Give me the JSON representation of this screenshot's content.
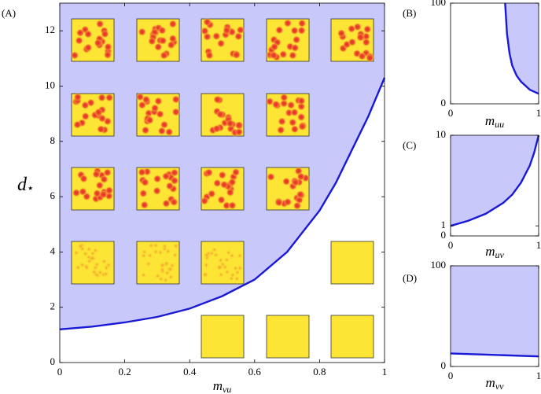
{
  "chart_data": [
    {
      "type": "line",
      "label": "(A)",
      "xlabel": {
        "main": "m",
        "sub": "vu"
      },
      "ylabel": {
        "main": "d",
        "sub": "⋆"
      },
      "xlim": [
        0,
        1
      ],
      "ylim": [
        0,
        13
      ],
      "xticks": [
        0,
        0.2,
        0.4,
        0.6,
        0.8,
        1
      ],
      "yticks": [
        0,
        2,
        4,
        6,
        8,
        10,
        12
      ],
      "x": [
        0,
        0.1,
        0.2,
        0.3,
        0.4,
        0.5,
        0.6,
        0.7,
        0.8,
        0.85,
        0.9,
        0.95,
        1
      ],
      "series": [
        {
          "color": "#1a1ad6",
          "fill": "#c8c8fa",
          "values": [
            1.2,
            1.3,
            1.45,
            1.65,
            1.95,
            2.4,
            3.0,
            4.0,
            5.5,
            6.5,
            7.7,
            8.9,
            10.3
          ]
        }
      ]
    },
    {
      "type": "line",
      "label": "(B)",
      "xlabel": {
        "main": "m",
        "sub": "uu"
      },
      "xlim": [
        0,
        1
      ],
      "ylim": [
        0,
        100
      ],
      "xticks": [
        0,
        1
      ],
      "yticks": [
        0,
        100
      ],
      "x": [
        0.62,
        0.64,
        0.67,
        0.7,
        0.75,
        0.8,
        0.9,
        1
      ],
      "series": [
        {
          "color": "#1a1ad6",
          "fill": "#c8c8fa",
          "values": [
            100,
            70,
            50,
            38,
            28,
            22,
            14,
            10
          ]
        }
      ]
    },
    {
      "type": "line",
      "label": "(C)",
      "xlabel": {
        "main": "m",
        "sub": "uv"
      },
      "xlim": [
        0,
        1
      ],
      "ylim": [
        0,
        10
      ],
      "xticks": [
        0,
        1
      ],
      "yticks": [
        0,
        1,
        10
      ],
      "x": [
        0,
        0.2,
        0.4,
        0.6,
        0.7,
        0.8,
        0.9,
        0.95,
        1
      ],
      "series": [
        {
          "color": "#1a1ad6",
          "fill": "#c8c8fa",
          "values": [
            1.0,
            1.5,
            2.2,
            3.3,
            4.1,
            5.3,
            7.0,
            8.3,
            10
          ]
        }
      ]
    },
    {
      "type": "line",
      "label": "(D)",
      "xlabel": {
        "main": "m",
        "sub": "vv"
      },
      "xlim": [
        0,
        1
      ],
      "ylim": [
        0,
        100
      ],
      "xticks": [
        0,
        1
      ],
      "yticks": [
        0,
        100
      ],
      "x": [
        0,
        0.5,
        1
      ],
      "series": [
        {
          "color": "#1a1ad6",
          "fill": "#c8c8fa",
          "values": [
            13,
            11.5,
            10
          ]
        }
      ]
    }
  ]
}
